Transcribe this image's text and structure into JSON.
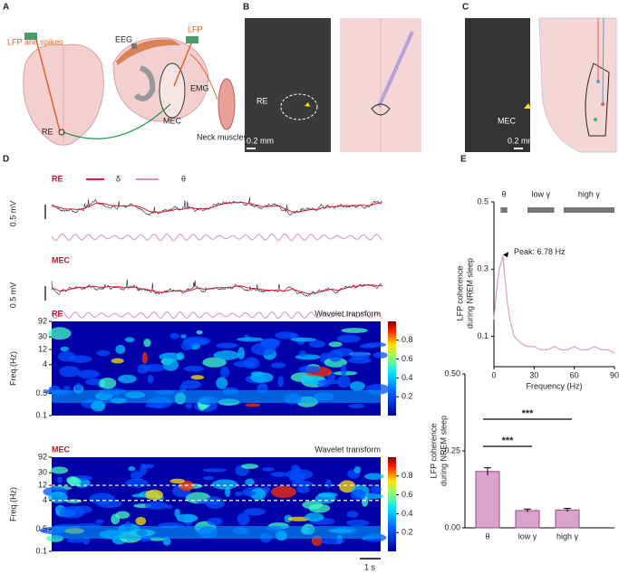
{
  "panels": {
    "a": {
      "label": "A",
      "lfp_spikes": "LFP and spikes",
      "eeg": "EEG",
      "lfp": "LFP",
      "emg": "EMG",
      "re": "RE",
      "mec": "MEC",
      "neck": "Neck muscles"
    },
    "b": {
      "label": "B",
      "re": "RE",
      "scale": "0.2 mm"
    },
    "c": {
      "label": "C",
      "mec": "MEC",
      "scale": "0.2 mm"
    },
    "d": {
      "label": "D",
      "legend": [
        "δ",
        "θ"
      ],
      "legend_colors": [
        "#e0143c",
        "#d88cc0"
      ],
      "traces": [
        {
          "region": "RE",
          "scale": "0.5 mV"
        },
        {
          "region": "MEC",
          "scale": "0.5 mV"
        }
      ],
      "wavelets": [
        {
          "region": "RE",
          "title": "Wavelet transform"
        },
        {
          "region": "MEC",
          "title": "Wavelet transform"
        }
      ],
      "freq_label": "Freq.(Hz)",
      "freq_ticks": [
        92,
        30,
        12,
        4,
        0.5,
        0.1
      ],
      "freq_lim": [
        0.1,
        92
      ],
      "colorbar_ticks": [
        0.8,
        0.6,
        0.4,
        0.2
      ],
      "colorbar_lim": [
        0,
        1
      ],
      "dashed_freqs": [
        12,
        4
      ],
      "time_scale": "1 s"
    },
    "e": {
      "label": "E"
    }
  },
  "chart_data": [
    {
      "type": "line",
      "xlabel": "Frequency (Hz)",
      "ylabel": [
        "LFP coherence",
        "during NREM sleep"
      ],
      "x": [
        0,
        2,
        4,
        6.78,
        8,
        10,
        12,
        15,
        20,
        25,
        30,
        35,
        40,
        45,
        50,
        55,
        60,
        65,
        70,
        75,
        80,
        85,
        90
      ],
      "values": [
        0.15,
        0.24,
        0.3,
        0.34,
        0.28,
        0.2,
        0.15,
        0.1,
        0.08,
        0.07,
        0.07,
        0.06,
        0.06,
        0.07,
        0.06,
        0.06,
        0.07,
        0.06,
        0.06,
        0.07,
        0.06,
        0.06,
        0.05
      ],
      "color": "#d8a4cc",
      "xlim": [
        0,
        90
      ],
      "xticks": [
        0,
        30,
        60,
        90
      ],
      "ylim": [
        0.01,
        0.5
      ],
      "yticks": [
        0.1,
        0.3,
        0.5
      ],
      "bands": [
        {
          "name": "θ",
          "range": [
            5,
            10
          ]
        },
        {
          "name": "low γ",
          "range": [
            25,
            45
          ]
        },
        {
          "name": "high γ",
          "range": [
            52,
            90
          ]
        }
      ],
      "annotation": {
        "text": "Peak: 6.78 Hz",
        "x": 6.78,
        "y": 0.34
      }
    },
    {
      "type": "bar",
      "ylabel": [
        "LFP coherence",
        "during NREM sleep"
      ],
      "categories": [
        "θ",
        "low γ",
        "high γ"
      ],
      "values": [
        0.183,
        0.056,
        0.058
      ],
      "errors": [
        0.012,
        0.005,
        0.005
      ],
      "color": "#d9a3cb",
      "edge_color": "#9b4a86",
      "ylim": [
        0,
        0.5
      ],
      "yticks": [
        {
          "value": 0,
          "label": "0.00"
        },
        {
          "value": 0.25,
          "label": "0.25"
        },
        {
          "value": 0.5,
          "label": "0.50"
        }
      ],
      "significance": [
        {
          "label": "***",
          "pair": [
            0,
            2
          ]
        },
        {
          "label": "***",
          "pair": [
            0,
            1
          ]
        }
      ]
    }
  ]
}
